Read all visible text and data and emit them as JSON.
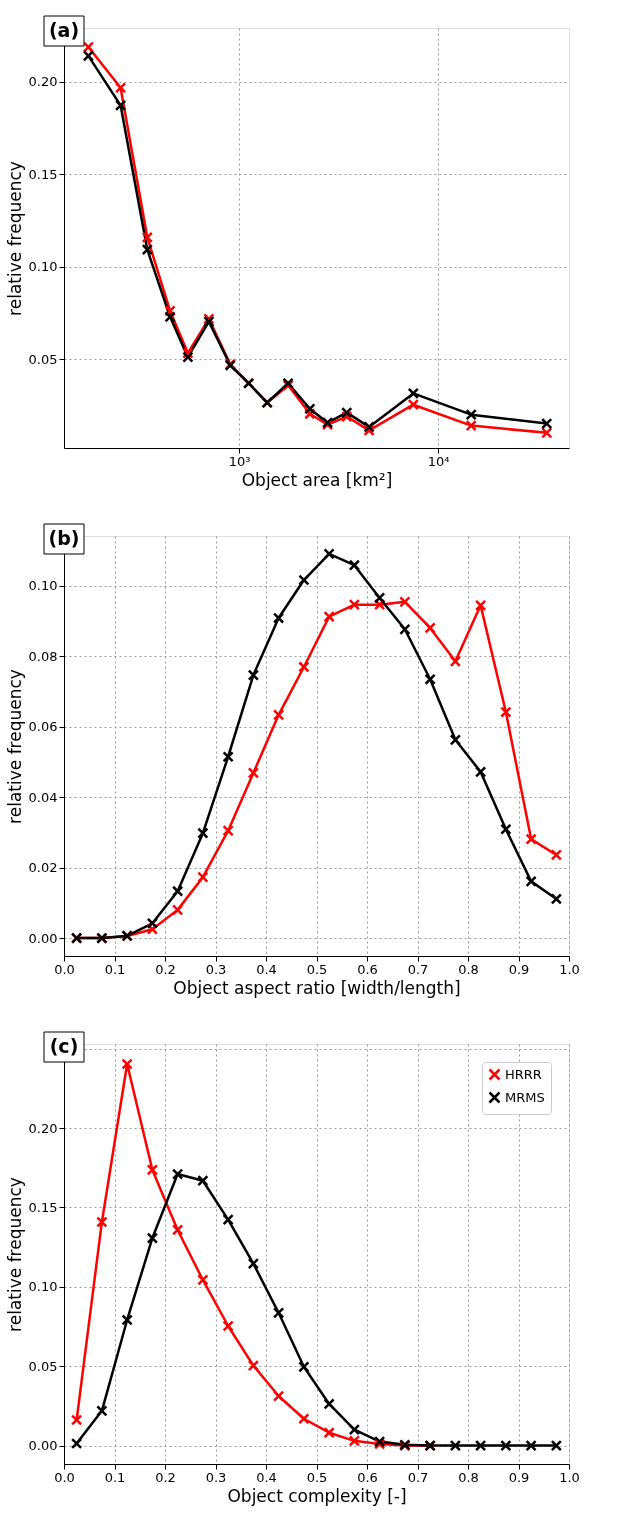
{
  "chart_data": [
    {
      "type": "line",
      "title": "(a)",
      "xlabel": "Object area [km²]",
      "ylabel": "relative frequency",
      "log": "x",
      "grid": true,
      "legend": false,
      "marker": "cross",
      "line_style": "solid",
      "xlim": [
        132,
        45400
      ],
      "ylim": [
        0.002,
        0.229
      ],
      "xticks": [
        {
          "value": 1000,
          "label": "10³"
        },
        {
          "value": 10000,
          "label": "10⁴"
        }
      ],
      "yticks": [
        {
          "value": 0.05,
          "label": "0.05"
        },
        {
          "value": 0.1,
          "label": "0.10"
        },
        {
          "value": 0.15,
          "label": "0.15"
        },
        {
          "value": 0.2,
          "label": "0.20"
        }
      ],
      "x": [
        175,
        254,
        346,
        450,
        553,
        705,
        903,
        1117,
        1384,
        1763,
        2267,
        2783,
        3475,
        4498,
        7500,
        14650,
        35100
      ],
      "series": [
        {
          "color": "#ff0000",
          "values": [
            0.2187,
            0.1967,
            0.1158,
            0.0761,
            0.0533,
            0.0718,
            0.0472,
            0.037,
            0.0265,
            0.0359,
            0.0205,
            0.0146,
            0.019,
            0.0115,
            0.0254,
            0.0141,
            0.0102
          ]
        },
        {
          "color": "#000000",
          "values": [
            0.2139,
            0.1872,
            0.1092,
            0.0729,
            0.0511,
            0.0703,
            0.0467,
            0.037,
            0.0265,
            0.037,
            0.0232,
            0.0157,
            0.0211,
            0.0134,
            0.0315,
            0.02,
            0.0152
          ]
        }
      ]
    },
    {
      "type": "line",
      "title": "(b)",
      "xlabel": "Object aspect ratio [width/length]",
      "ylabel": "relative frequency",
      "grid": true,
      "legend": false,
      "marker": "cross",
      "line_style": "solid",
      "xlim": [
        0,
        1
      ],
      "ylim": [
        -0.0051,
        0.1142
      ],
      "xticks": [
        {
          "value": 0,
          "label": "0.0"
        },
        {
          "value": 0.1,
          "label": "0.1"
        },
        {
          "value": 0.2,
          "label": "0.2"
        },
        {
          "value": 0.3,
          "label": "0.3"
        },
        {
          "value": 0.4,
          "label": "0.4"
        },
        {
          "value": 0.5,
          "label": "0.5"
        },
        {
          "value": 0.6,
          "label": "0.6"
        },
        {
          "value": 0.7,
          "label": "0.7"
        },
        {
          "value": 0.8,
          "label": "0.8"
        },
        {
          "value": 0.9,
          "label": "0.9"
        },
        {
          "value": 1,
          "label": "1.0"
        }
      ],
      "yticks": [
        {
          "value": 0,
          "label": "0.00"
        },
        {
          "value": 0.02,
          "label": "0.02"
        },
        {
          "value": 0.04,
          "label": "0.04"
        },
        {
          "value": 0.06,
          "label": "0.06"
        },
        {
          "value": 0.08,
          "label": "0.08"
        },
        {
          "value": 0.1,
          "label": "0.10"
        }
      ],
      "x": [
        0.025,
        0.075,
        0.125,
        0.175,
        0.225,
        0.275,
        0.325,
        0.375,
        0.425,
        0.475,
        0.525,
        0.575,
        0.625,
        0.675,
        0.725,
        0.775,
        0.825,
        0.875,
        0.925,
        0.975
      ],
      "series": [
        {
          "color": "#ff0000",
          "values": [
            0,
            0,
            0.0006,
            0.0025,
            0.008,
            0.0173,
            0.0305,
            0.0469,
            0.0634,
            0.077,
            0.0913,
            0.0947,
            0.0947,
            0.0955,
            0.0881,
            0.0786,
            0.0945,
            0.0642,
            0.0281,
            0.0236
          ]
        },
        {
          "color": "#000000",
          "values": [
            0,
            0,
            0.0006,
            0.0042,
            0.0133,
            0.0298,
            0.0515,
            0.0747,
            0.0909,
            0.1017,
            0.1091,
            0.1059,
            0.0966,
            0.0877,
            0.0735,
            0.0563,
            0.0472,
            0.0309,
            0.0161,
            0.0111
          ]
        }
      ]
    },
    {
      "type": "line",
      "title": "(c)",
      "xlabel": "Object complexity [-]",
      "ylabel": "relative frequency",
      "grid": true,
      "legend": "top right",
      "marker": "cross",
      "line_style": "solid",
      "xlim": [
        0,
        1
      ],
      "ylim": [
        -0.0116,
        0.2529
      ],
      "xticks": [
        {
          "value": 0,
          "label": "0.0"
        },
        {
          "value": 0.1,
          "label": "0.1"
        },
        {
          "value": 0.2,
          "label": "0.2"
        },
        {
          "value": 0.3,
          "label": "0.3"
        },
        {
          "value": 0.4,
          "label": "0.4"
        },
        {
          "value": 0.5,
          "label": "0.5"
        },
        {
          "value": 0.6,
          "label": "0.6"
        },
        {
          "value": 0.7,
          "label": "0.7"
        },
        {
          "value": 0.8,
          "label": "0.8"
        },
        {
          "value": 0.9,
          "label": "0.9"
        },
        {
          "value": 1,
          "label": "1.0"
        }
      ],
      "yticks": [
        {
          "value": 0,
          "label": "0.00"
        },
        {
          "value": 0.05,
          "label": "0.05"
        },
        {
          "value": 0.1,
          "label": "0.10"
        },
        {
          "value": 0.15,
          "label": "0.15"
        },
        {
          "value": 0.2,
          "label": "0.20"
        },
        {
          "value": 0.25,
          "label": null
        }
      ],
      "x": [
        0.025,
        0.075,
        0.125,
        0.175,
        0.225,
        0.275,
        0.325,
        0.375,
        0.425,
        0.475,
        0.525,
        0.575,
        0.625,
        0.675,
        0.725,
        0.775,
        0.825,
        0.875,
        0.925,
        0.975
      ],
      "series": [
        {
          "name": "HRRR",
          "color": "#ff0000",
          "values": [
            0.0161,
            0.1408,
            0.2403,
            0.1736,
            0.1358,
            0.1043,
            0.0753,
            0.0504,
            0.0312,
            0.0169,
            0.0081,
            0.003,
            0.001,
            0,
            0,
            null,
            null,
            null,
            null,
            null
          ]
        },
        {
          "name": "MRMS",
          "color": "#000000",
          "values": [
            0.0013,
            0.0219,
            0.0791,
            0.1307,
            0.171,
            0.1668,
            0.1423,
            0.1146,
            0.0836,
            0.0496,
            0.0262,
            0.0101,
            0.0025,
            0.0005,
            0,
            0,
            0,
            0,
            0,
            0
          ]
        }
      ]
    }
  ]
}
